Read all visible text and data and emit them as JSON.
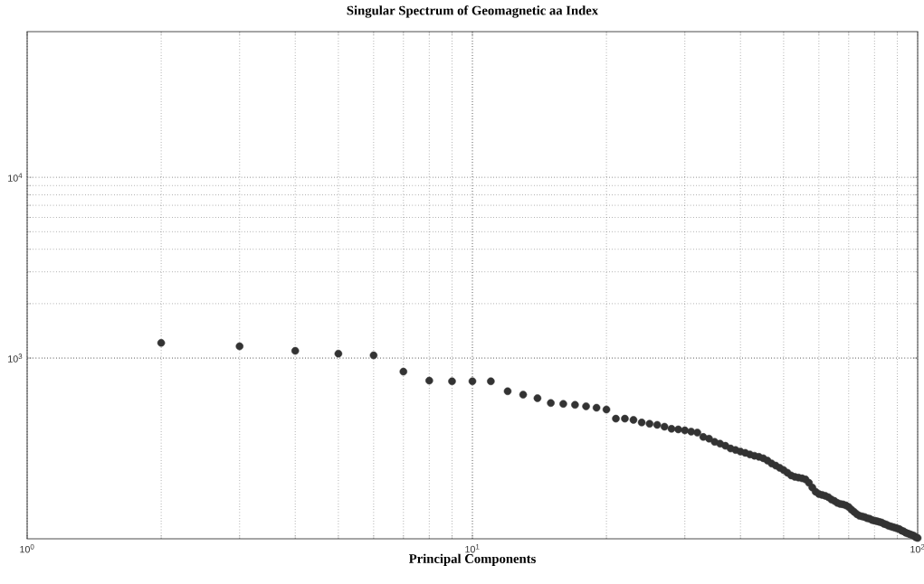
{
  "chart_data": {
    "type": "scatter",
    "title": "Singular Spectrum of Geomagnetic aa Index",
    "xlabel": "Principal Components",
    "x": [
      2,
      3,
      4,
      5,
      6,
      7,
      8,
      9,
      10,
      11,
      12,
      13,
      14,
      15,
      16,
      17,
      18,
      19,
      20,
      21,
      22,
      23,
      24,
      25,
      26,
      27,
      28,
      29,
      30,
      31,
      32,
      33,
      34,
      35,
      36,
      37,
      38,
      39,
      40,
      41,
      42,
      43,
      44,
      45,
      46,
      47,
      48,
      49,
      50,
      51,
      52,
      53,
      54,
      55,
      56,
      57,
      58,
      59,
      60,
      61,
      62,
      63,
      64,
      65,
      66,
      67,
      68,
      69,
      70,
      71,
      72,
      73,
      74,
      75,
      76,
      77,
      78,
      79,
      80,
      81,
      82,
      83,
      84,
      85,
      86,
      87,
      88,
      89,
      90,
      91,
      92,
      93,
      94,
      95,
      96,
      97,
      98,
      99,
      100
    ],
    "series": [
      {
        "color": "#333333",
        "values": [
          1213,
          1161,
          1096,
          1058,
          1035,
          841,
          750,
          744,
          744,
          744,
          655,
          627,
          600,
          564,
          558,
          551,
          541,
          531,
          519,
          462,
          462,
          455,
          440,
          433,
          427,
          417,
          406,
          403,
          398,
          392,
          387,
          366,
          358,
          344,
          336,
          327,
          316,
          310,
          304,
          299,
          293,
          288,
          284,
          279,
          271,
          261,
          254,
          247,
          240,
          232,
          224,
          220,
          218,
          216,
          213,
          204,
          192,
          182,
          177,
          175,
          173,
          170,
          165,
          162,
          158,
          156,
          155,
          153,
          150,
          145,
          141,
          137,
          134,
          133,
          132,
          130,
          129,
          127,
          126,
          125,
          124,
          123,
          121,
          120,
          118,
          117,
          116,
          115,
          114,
          113,
          111,
          110,
          108,
          107,
          106,
          105,
          104,
          102,
          101
        ]
      }
    ],
    "xlim": [
      1,
      100
    ],
    "ylim": [
      100,
      64000
    ],
    "xticks": [
      {
        "value": 1,
        "label": "10$^{0}$"
      },
      {
        "value": 10,
        "label": "10$^{1}$"
      },
      {
        "value": 100,
        "label": "10$^{2}$"
      }
    ],
    "yticks": [
      {
        "value": 1000,
        "label": "10$^{3}$"
      },
      {
        "value": 10000,
        "label": "10$^{4}$"
      }
    ],
    "log": "xy",
    "grid": true,
    "marker": "circle"
  }
}
